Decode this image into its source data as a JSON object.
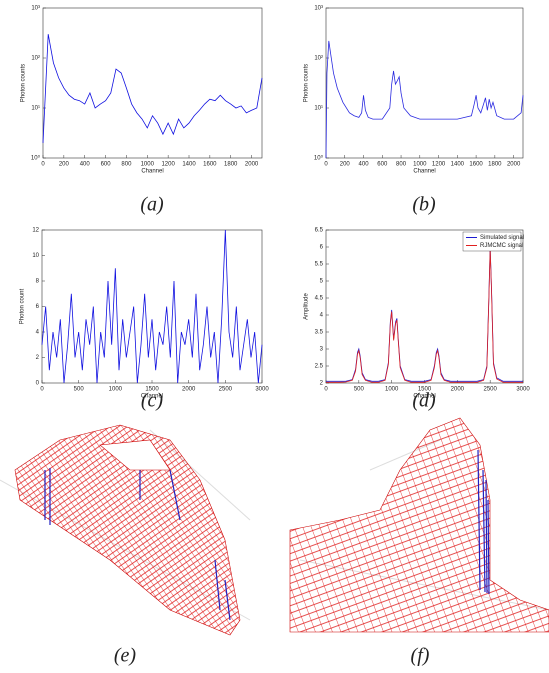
{
  "captions": [
    "(a)",
    "(b)",
    "(c)",
    "(d)",
    "(e)",
    "(f)"
  ],
  "chart_data": [
    {
      "type": "line",
      "xlabel": "Channel",
      "ylabel": "Photon counts",
      "log_scale": true,
      "xlim": [
        0,
        2100
      ],
      "ylim": [
        1,
        1000
      ],
      "xticks": [
        0,
        200,
        400,
        600,
        800,
        1000,
        1200,
        1400,
        1600,
        1800,
        2000
      ],
      "yticks": [
        {
          "value": 1,
          "label": "10⁰"
        },
        {
          "value": 10,
          "label": "10¹"
        },
        {
          "value": 100,
          "label": "10²"
        },
        {
          "value": 1000,
          "label": "10³"
        }
      ],
      "x": [
        0,
        50,
        100,
        150,
        200,
        250,
        300,
        350,
        400,
        450,
        500,
        550,
        600,
        650,
        700,
        750,
        800,
        850,
        900,
        950,
        1000,
        1050,
        1100,
        1150,
        1200,
        1250,
        1300,
        1350,
        1400,
        1450,
        1500,
        1550,
        1600,
        1650,
        1700,
        1750,
        1800,
        1850,
        1900,
        1950,
        2000,
        2050,
        2100
      ],
      "series": [
        {
          "color": "#1010e0",
          "values": [
            2,
            300,
            80,
            40,
            25,
            18,
            15,
            14,
            12,
            20,
            10,
            12,
            14,
            20,
            60,
            50,
            25,
            12,
            8,
            6,
            4,
            7,
            5,
            3,
            5,
            3,
            6,
            4,
            5,
            7,
            9,
            12,
            15,
            14,
            18,
            14,
            12,
            10,
            11,
            8,
            9,
            10,
            40
          ]
        }
      ]
    },
    {
      "type": "line",
      "xlabel": "Channel",
      "ylabel": "Photon counts",
      "log_scale": true,
      "xlim": [
        0,
        2100
      ],
      "ylim": [
        1,
        1000
      ],
      "xticks": [
        0,
        200,
        400,
        600,
        800,
        1000,
        1200,
        1400,
        1600,
        1800,
        2000
      ],
      "yticks": [
        {
          "value": 1,
          "label": "10⁰"
        },
        {
          "value": 10,
          "label": "10¹"
        },
        {
          "value": 100,
          "label": "10²"
        },
        {
          "value": 1000,
          "label": "10³"
        }
      ],
      "x": [
        0,
        10,
        30,
        50,
        80,
        120,
        180,
        250,
        300,
        350,
        380,
        400,
        420,
        450,
        500,
        600,
        680,
        700,
        720,
        740,
        760,
        780,
        800,
        830,
        900,
        1000,
        1200,
        1400,
        1550,
        1580,
        1600,
        1620,
        1650,
        1680,
        1700,
        1720,
        1740,
        1760,
        1780,
        1820,
        1900,
        2000,
        2080,
        2100
      ],
      "series": [
        {
          "color": "#2a2ae0",
          "values": [
            1,
            50,
            220,
            120,
            50,
            25,
            13,
            8,
            7,
            6.5,
            8,
            18,
            9,
            6.5,
            6,
            6,
            10,
            30,
            55,
            30,
            35,
            42,
            20,
            10,
            7,
            6,
            6,
            6,
            7,
            12,
            18,
            10,
            8,
            12,
            16,
            9,
            15,
            10,
            13,
            7,
            6,
            6,
            8,
            18
          ]
        }
      ]
    },
    {
      "type": "line",
      "xlabel": "Channel",
      "ylabel": "Photon count",
      "log_scale": false,
      "xlim": [
        0,
        3000
      ],
      "ylim": [
        0,
        12
      ],
      "xticks": [
        0,
        500,
        1000,
        1500,
        2000,
        2500,
        3000
      ],
      "yticks": [
        0,
        2,
        4,
        6,
        8,
        10,
        12
      ],
      "x": [
        0,
        50,
        100,
        150,
        200,
        250,
        300,
        350,
        400,
        450,
        500,
        550,
        600,
        650,
        700,
        750,
        800,
        850,
        900,
        950,
        1000,
        1050,
        1100,
        1150,
        1200,
        1250,
        1300,
        1350,
        1400,
        1450,
        1500,
        1550,
        1600,
        1650,
        1700,
        1750,
        1800,
        1850,
        1900,
        1950,
        2000,
        2050,
        2100,
        2150,
        2200,
        2250,
        2300,
        2350,
        2400,
        2450,
        2500,
        2550,
        2600,
        2650,
        2700,
        2750,
        2800,
        2850,
        2900,
        2950,
        3000
      ],
      "series": [
        {
          "color": "#1010e0",
          "values": [
            3,
            6,
            1,
            4,
            2,
            5,
            0,
            3,
            7,
            2,
            4,
            1,
            5,
            3,
            6,
            0,
            4,
            2,
            8,
            3,
            9,
            1,
            5,
            2,
            4,
            6,
            0,
            3,
            7,
            2,
            5,
            1,
            4,
            3,
            6,
            2,
            8,
            0,
            4,
            3,
            5,
            2,
            7,
            1,
            3,
            6,
            2,
            4,
            0,
            5,
            12,
            4,
            2,
            6,
            1,
            3,
            5,
            2,
            4,
            0,
            3
          ]
        }
      ]
    },
    {
      "type": "line",
      "xlabel": "Channel",
      "ylabel": "Amplitude",
      "log_scale": false,
      "legend": "upper right",
      "xlim": [
        0,
        3000
      ],
      "ylim": [
        2,
        6.5
      ],
      "xticks": [
        0,
        500,
        1000,
        1500,
        2000,
        2500,
        3000
      ],
      "yticks": [
        2,
        2.5,
        3,
        3.5,
        4,
        4.5,
        5,
        5.5,
        6,
        6.5
      ],
      "x": [
        0,
        100,
        200,
        300,
        400,
        450,
        480,
        500,
        520,
        550,
        600,
        700,
        800,
        900,
        950,
        980,
        1000,
        1030,
        1060,
        1080,
        1100,
        1130,
        1200,
        1300,
        1400,
        1500,
        1600,
        1650,
        1680,
        1700,
        1720,
        1750,
        1800,
        1900,
        2000,
        2100,
        2200,
        2300,
        2400,
        2450,
        2480,
        2500,
        2520,
        2550,
        2600,
        2700,
        2800,
        2900,
        3000
      ],
      "series": [
        {
          "name": "Simulated signal",
          "color": "#1a1ad0",
          "values": [
            2.05,
            2.05,
            2.05,
            2.05,
            2.1,
            2.4,
            2.9,
            3.0,
            2.8,
            2.3,
            2.1,
            2.05,
            2.05,
            2.1,
            2.6,
            3.8,
            4.15,
            3.3,
            3.8,
            3.9,
            3.3,
            2.5,
            2.1,
            2.05,
            2.05,
            2.05,
            2.1,
            2.5,
            2.9,
            3.0,
            2.8,
            2.3,
            2.1,
            2.05,
            2.05,
            2.05,
            2.05,
            2.05,
            2.1,
            2.5,
            4.5,
            6.0,
            4.8,
            2.6,
            2.15,
            2.05,
            2.05,
            2.05,
            2.05
          ]
        },
        {
          "name": "RJMCMC signal",
          "color": "#e02020",
          "values": [
            2.02,
            2.02,
            2.02,
            2.03,
            2.08,
            2.35,
            2.85,
            2.95,
            2.75,
            2.25,
            2.08,
            2.02,
            2.02,
            2.08,
            2.55,
            3.75,
            4.1,
            3.25,
            3.75,
            3.85,
            3.25,
            2.45,
            2.08,
            2.02,
            2.02,
            2.02,
            2.08,
            2.45,
            2.85,
            2.95,
            2.75,
            2.25,
            2.08,
            2.02,
            2.02,
            2.02,
            2.02,
            2.02,
            2.08,
            2.45,
            4.45,
            5.95,
            4.75,
            2.55,
            2.12,
            2.02,
            2.02,
            2.02,
            2.02
          ]
        }
      ]
    }
  ]
}
